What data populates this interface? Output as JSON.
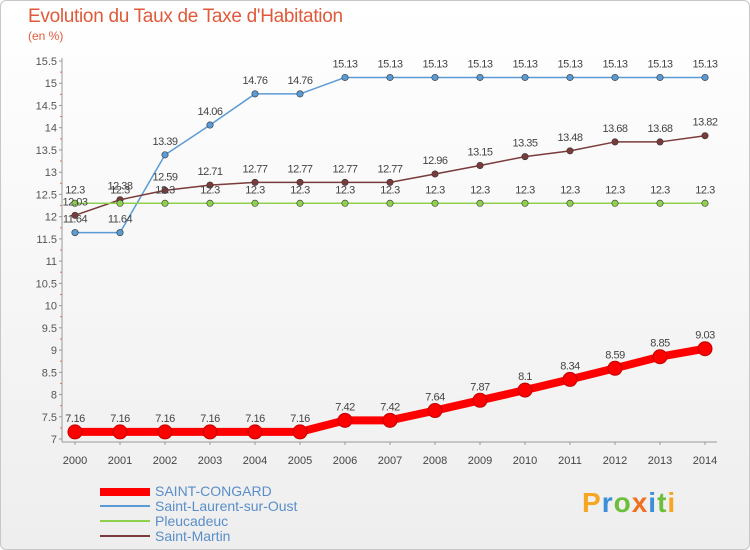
{
  "header": {
    "title": "Evolution du Taux de Taxe d'Habitation",
    "subtitle": "(en %)"
  },
  "logo": {
    "text": "Proxiti"
  },
  "chart_data": {
    "type": "line",
    "title": "Evolution du Taux de Taxe d'Habitation",
    "ylabel": "(en %)",
    "xlabel": "",
    "x": [
      "2000",
      "2001",
      "2002",
      "2003",
      "2004",
      "2005",
      "2006",
      "2007",
      "2008",
      "2009",
      "2010",
      "2011",
      "2012",
      "2013",
      "2014"
    ],
    "ylim": [
      7,
      15.5
    ],
    "yticks": [
      "7",
      "7.5",
      "8",
      "8.5",
      "9",
      "9.5",
      "10",
      "10.5",
      "11",
      "11.5",
      "12",
      "12.5",
      "13",
      "13.5",
      "14",
      "14.5",
      "15",
      "15.5"
    ],
    "grid": false,
    "legend_position": "bottom-left",
    "series": [
      {
        "name": "SAINT-CONGARD",
        "color": "#ff0000",
        "values": [
          7.16,
          7.16,
          7.16,
          7.16,
          7.16,
          7.16,
          7.42,
          7.42,
          7.64,
          7.87,
          8.1,
          8.34,
          8.59,
          8.85,
          9.03
        ],
        "labels": [
          "7.16",
          "7.16",
          "7.16",
          "7.16",
          "7.16",
          "7.16",
          "7.42",
          "7.42",
          "7.64",
          "7.87",
          "8.1",
          "8.34",
          "8.59",
          "8.85",
          "9.03"
        ]
      },
      {
        "name": "Saint-Laurent-sur-Oust",
        "color": "#5b9bd5",
        "values": [
          11.64,
          11.64,
          13.39,
          14.06,
          14.76,
          14.76,
          15.13,
          15.13,
          15.13,
          15.13,
          15.13,
          15.13,
          15.13,
          15.13,
          15.13
        ],
        "labels": [
          "11.64",
          "11.64",
          "13.39",
          "14.06",
          "14.76",
          "14.76",
          "15.13",
          "15.13",
          "15.13",
          "15.13",
          "15.13",
          "15.13",
          "15.13",
          "15.13",
          "15.13"
        ]
      },
      {
        "name": "Pleucadeuc",
        "color": "#8fd14f",
        "values": [
          12.3,
          12.3,
          12.3,
          12.3,
          12.3,
          12.3,
          12.3,
          12.3,
          12.3,
          12.3,
          12.3,
          12.3,
          12.3,
          12.3,
          12.3
        ],
        "labels": [
          "12.3",
          "12.3",
          "12.3",
          "12.3",
          "12.3",
          "12.3",
          "12.3",
          "12.3",
          "12.3",
          "12.3",
          "12.3",
          "12.3",
          "12.3",
          "12.3",
          "12.3"
        ]
      },
      {
        "name": "Saint-Martin",
        "color": "#7a3b3b",
        "values": [
          12.03,
          12.38,
          12.59,
          12.71,
          12.77,
          12.77,
          12.77,
          12.77,
          12.96,
          13.15,
          13.35,
          13.48,
          13.68,
          13.68,
          13.82
        ],
        "labels": [
          "12.03",
          "12.38",
          "12.59",
          "12.71",
          "12.77",
          "12.77",
          "12.77",
          "12.77",
          "12.96",
          "13.15",
          "13.35",
          "13.48",
          "13.68",
          "13.68",
          "13.82"
        ]
      }
    ]
  }
}
